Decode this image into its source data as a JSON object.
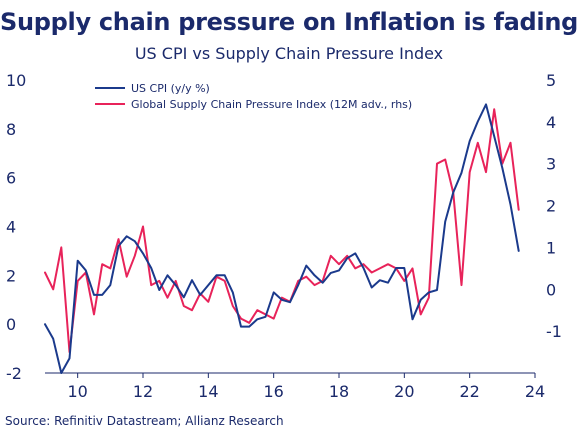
{
  "header": {
    "title": "Supply chain pressure on Inflation is fading",
    "subtitle": "US CPI vs Supply Chain Pressure Index"
  },
  "footer": {
    "source": "Source: Refinitiv Datastream; Allianz Research"
  },
  "colors": {
    "title": "#1b2a6b",
    "cpi": "#1b3a8c",
    "gscpi": "#e8235a",
    "axis": "#1b2a6b",
    "grid_tick": "#9aa3c0"
  },
  "chart_data": {
    "type": "line",
    "title": "Supply chain pressure on Inflation is fading",
    "subtitle": "US CPI vs Supply Chain Pressure Index",
    "xlabel": "",
    "ylabel": "",
    "x_ticks": [
      "10",
      "12",
      "14",
      "16",
      "18",
      "20",
      "22",
      "24"
    ],
    "xlim": [
      2009,
      2024
    ],
    "y_left_ticks": [
      "-2",
      "0",
      "2",
      "4",
      "6",
      "8",
      "10"
    ],
    "ylim_left": [
      -2,
      10
    ],
    "y_right_ticks": [
      "-1",
      "0",
      "1",
      "2",
      "3",
      "4",
      "5"
    ],
    "ylim_right": [
      -2,
      5
    ],
    "grid": false,
    "legend_position": "top-left",
    "series": [
      {
        "name": "US CPI (y/y %)",
        "axis": "left",
        "color": "#1b3a8c",
        "x": [
          2009.0,
          2009.25,
          2009.5,
          2009.75,
          2010.0,
          2010.25,
          2010.5,
          2010.75,
          2011.0,
          2011.25,
          2011.5,
          2011.75,
          2012.0,
          2012.25,
          2012.5,
          2012.75,
          2013.0,
          2013.25,
          2013.5,
          2013.75,
          2014.0,
          2014.25,
          2014.5,
          2014.75,
          2015.0,
          2015.25,
          2015.5,
          2015.75,
          2016.0,
          2016.25,
          2016.5,
          2016.75,
          2017.0,
          2017.25,
          2017.5,
          2017.75,
          2018.0,
          2018.25,
          2018.5,
          2018.75,
          2019.0,
          2019.25,
          2019.5,
          2019.75,
          2020.0,
          2020.25,
          2020.5,
          2020.75,
          2021.0,
          2021.25,
          2021.5,
          2021.75,
          2022.0,
          2022.25,
          2022.5,
          2022.75,
          2023.0,
          2023.25,
          2023.5
        ],
        "values": [
          0.0,
          -0.6,
          -2.0,
          -1.4,
          2.6,
          2.2,
          1.2,
          1.2,
          1.6,
          3.2,
          3.6,
          3.4,
          2.9,
          2.3,
          1.4,
          2.0,
          1.6,
          1.1,
          1.8,
          1.2,
          1.6,
          2.0,
          2.0,
          1.3,
          -0.1,
          -0.1,
          0.2,
          0.3,
          1.3,
          1.0,
          0.9,
          1.6,
          2.4,
          2.0,
          1.7,
          2.1,
          2.2,
          2.7,
          2.9,
          2.3,
          1.5,
          1.8,
          1.7,
          2.3,
          2.3,
          0.2,
          1.0,
          1.3,
          1.4,
          4.2,
          5.4,
          6.2,
          7.5,
          8.3,
          9.0,
          7.7,
          6.4,
          4.9,
          3.0
        ]
      },
      {
        "name": "Global Supply Chain Pressure Index (12M adv., rhs)",
        "axis": "right",
        "color": "#e8235a",
        "x": [
          2009.0,
          2009.25,
          2009.5,
          2009.75,
          2010.0,
          2010.25,
          2010.5,
          2010.75,
          2011.0,
          2011.25,
          2011.5,
          2011.75,
          2012.0,
          2012.25,
          2012.5,
          2012.75,
          2013.0,
          2013.25,
          2013.5,
          2013.75,
          2014.0,
          2014.25,
          2014.5,
          2014.75,
          2015.0,
          2015.25,
          2015.5,
          2015.75,
          2016.0,
          2016.25,
          2016.5,
          2016.75,
          2017.0,
          2017.25,
          2017.5,
          2017.75,
          2018.0,
          2018.25,
          2018.5,
          2018.75,
          2019.0,
          2019.25,
          2019.5,
          2019.75,
          2020.0,
          2020.25,
          2020.5,
          2020.75,
          2021.0,
          2021.25,
          2021.5,
          2021.75,
          2022.0,
          2022.25,
          2022.5,
          2022.75,
          2023.0,
          2023.25,
          2023.5
        ],
        "values": [
          0.4,
          0.0,
          1.0,
          -1.5,
          0.2,
          0.4,
          -0.6,
          0.6,
          0.5,
          1.2,
          0.3,
          0.8,
          1.5,
          0.1,
          0.2,
          -0.2,
          0.2,
          -0.4,
          -0.5,
          -0.1,
          -0.3,
          0.3,
          0.2,
          -0.4,
          -0.7,
          -0.8,
          -0.5,
          -0.6,
          -0.7,
          -0.2,
          -0.3,
          0.2,
          0.3,
          0.1,
          0.2,
          0.8,
          0.6,
          0.8,
          0.5,
          0.6,
          0.4,
          0.5,
          0.6,
          0.5,
          0.2,
          0.5,
          -0.6,
          -0.2,
          3.0,
          3.1,
          2.3,
          0.1,
          2.8,
          3.5,
          2.8,
          4.3,
          3.0,
          3.5,
          1.9
        ]
      }
    ]
  }
}
